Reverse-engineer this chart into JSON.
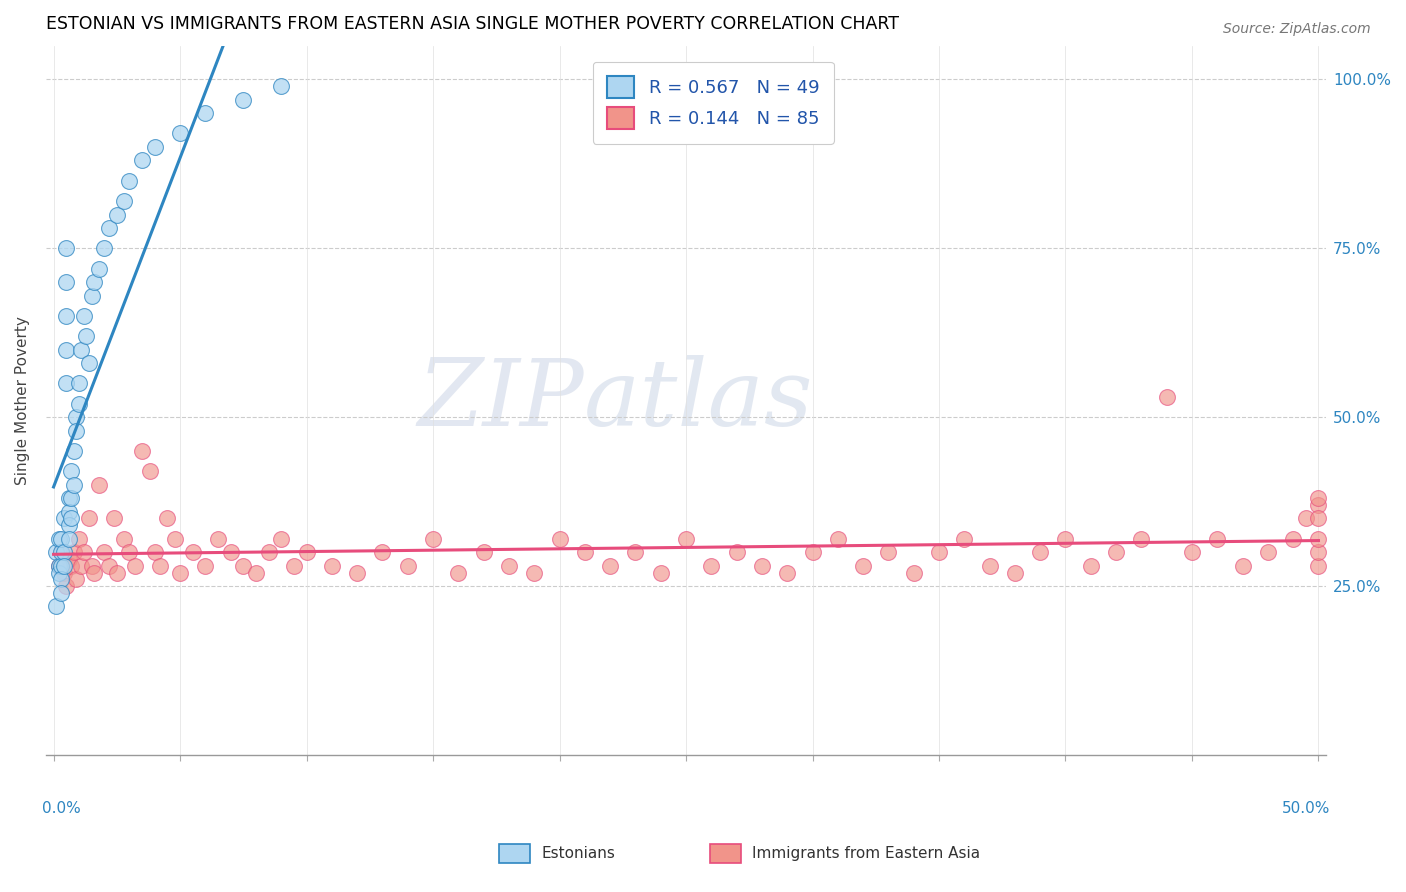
{
  "title": "ESTONIAN VS IMMIGRANTS FROM EASTERN ASIA SINGLE MOTHER POVERTY CORRELATION CHART",
  "source": "Source: ZipAtlas.com",
  "ylabel": "Single Mother Poverty",
  "legend_estonians": "Estonians",
  "legend_immigrants": "Immigrants from Eastern Asia",
  "R_estonians": 0.567,
  "N_estonians": 49,
  "R_immigrants": 0.144,
  "N_immigrants": 85,
  "color_estonians": "#AED6F1",
  "color_immigrants": "#F1948A",
  "line_estonians": "#2E86C1",
  "line_immigrants": "#E74C7C",
  "watermark_color": "#DDEEFF",
  "xlim": [
    0.0,
    0.5
  ],
  "ylim": [
    0.0,
    1.05
  ],
  "ytick_vals": [
    0.25,
    0.5,
    0.75,
    1.0
  ],
  "ytick_labels": [
    "25.0%",
    "50.0%",
    "75.0%",
    "100.0%"
  ],
  "xtick_vals": [
    0.0,
    0.05,
    0.1,
    0.15,
    0.2,
    0.25,
    0.3,
    0.35,
    0.4,
    0.45,
    0.5
  ],
  "estonians_x": [
    0.001,
    0.001,
    0.002,
    0.002,
    0.002,
    0.003,
    0.003,
    0.003,
    0.003,
    0.003,
    0.004,
    0.004,
    0.004,
    0.005,
    0.005,
    0.005,
    0.005,
    0.005,
    0.006,
    0.006,
    0.006,
    0.006,
    0.007,
    0.007,
    0.007,
    0.008,
    0.008,
    0.009,
    0.009,
    0.01,
    0.01,
    0.011,
    0.012,
    0.013,
    0.014,
    0.015,
    0.016,
    0.018,
    0.02,
    0.022,
    0.025,
    0.028,
    0.03,
    0.035,
    0.04,
    0.05,
    0.06,
    0.075,
    0.09
  ],
  "estonians_y": [
    0.3,
    0.22,
    0.32,
    0.28,
    0.27,
    0.3,
    0.28,
    0.32,
    0.26,
    0.24,
    0.35,
    0.3,
    0.28,
    0.75,
    0.7,
    0.65,
    0.6,
    0.55,
    0.38,
    0.36,
    0.34,
    0.32,
    0.42,
    0.38,
    0.35,
    0.45,
    0.4,
    0.5,
    0.48,
    0.55,
    0.52,
    0.6,
    0.65,
    0.62,
    0.58,
    0.68,
    0.7,
    0.72,
    0.75,
    0.78,
    0.8,
    0.82,
    0.85,
    0.88,
    0.9,
    0.92,
    0.95,
    0.97,
    0.99
  ],
  "immigrants_x": [
    0.002,
    0.003,
    0.004,
    0.005,
    0.006,
    0.007,
    0.008,
    0.009,
    0.01,
    0.011,
    0.012,
    0.014,
    0.015,
    0.016,
    0.018,
    0.02,
    0.022,
    0.024,
    0.025,
    0.028,
    0.03,
    0.032,
    0.035,
    0.038,
    0.04,
    0.042,
    0.045,
    0.048,
    0.05,
    0.055,
    0.06,
    0.065,
    0.07,
    0.075,
    0.08,
    0.085,
    0.09,
    0.095,
    0.1,
    0.11,
    0.12,
    0.13,
    0.14,
    0.15,
    0.16,
    0.17,
    0.18,
    0.19,
    0.2,
    0.21,
    0.22,
    0.23,
    0.24,
    0.25,
    0.26,
    0.27,
    0.28,
    0.29,
    0.3,
    0.31,
    0.32,
    0.33,
    0.34,
    0.35,
    0.36,
    0.37,
    0.38,
    0.39,
    0.4,
    0.41,
    0.42,
    0.43,
    0.44,
    0.45,
    0.46,
    0.47,
    0.48,
    0.49,
    0.495,
    0.5,
    0.5,
    0.5,
    0.5,
    0.5,
    0.5
  ],
  "immigrants_y": [
    0.28,
    0.3,
    0.27,
    0.25,
    0.29,
    0.28,
    0.3,
    0.26,
    0.32,
    0.28,
    0.3,
    0.35,
    0.28,
    0.27,
    0.4,
    0.3,
    0.28,
    0.35,
    0.27,
    0.32,
    0.3,
    0.28,
    0.45,
    0.42,
    0.3,
    0.28,
    0.35,
    0.32,
    0.27,
    0.3,
    0.28,
    0.32,
    0.3,
    0.28,
    0.27,
    0.3,
    0.32,
    0.28,
    0.3,
    0.28,
    0.27,
    0.3,
    0.28,
    0.32,
    0.27,
    0.3,
    0.28,
    0.27,
    0.32,
    0.3,
    0.28,
    0.3,
    0.27,
    0.32,
    0.28,
    0.3,
    0.28,
    0.27,
    0.3,
    0.32,
    0.28,
    0.3,
    0.27,
    0.3,
    0.32,
    0.28,
    0.27,
    0.3,
    0.32,
    0.28,
    0.3,
    0.32,
    0.53,
    0.3,
    0.32,
    0.28,
    0.3,
    0.32,
    0.35,
    0.37,
    0.28,
    0.3,
    0.32,
    0.35,
    0.38
  ]
}
